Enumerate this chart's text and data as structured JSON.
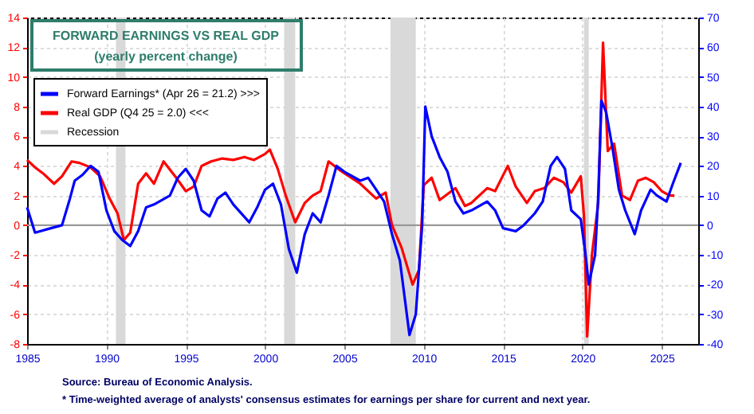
{
  "chart_data": {
    "type": "line",
    "title": "FORWARD EARNINGS VS REAL GDP",
    "subtitle": "(yearly percent change)",
    "xlim": [
      1985,
      2027.3
    ],
    "xticks": [
      1985,
      1990,
      1995,
      2000,
      2005,
      2010,
      2015,
      2020,
      2025
    ],
    "ylim": [
      -8,
      14
    ],
    "yticks": [
      -8,
      -6,
      -4,
      -2,
      0,
      2,
      4,
      6,
      8,
      10,
      12,
      14
    ],
    "y2lim": [
      -40,
      70
    ],
    "y2ticks": [
      -40,
      -30,
      -20,
      -10,
      0,
      10,
      20,
      30,
      40,
      50,
      60,
      70
    ],
    "grid": true,
    "legend": "top left",
    "line_style": "solid",
    "marker": "none",
    "series": [
      {
        "name": "Forward Earnings* (Apr 26 = 21.2) >>>",
        "color": "#0000ff",
        "axis": "y2",
        "x": [
          1985,
          1985.5,
          1986.5,
          1987.2,
          1987.7,
          1988,
          1988.5,
          1989,
          1989.5,
          1990,
          1990.5,
          1991,
          1991.5,
          1992,
          1992.5,
          1993,
          1994,
          1994.5,
          1995,
          1995.5,
          1996,
          1996.5,
          1997,
          1997.5,
          1998,
          1999,
          1999.5,
          2000,
          2000.5,
          2001,
          2001.5,
          2002,
          2002.5,
          2003,
          2003.5,
          2004,
          2004.5,
          2005,
          2006,
          2006.5,
          2007,
          2007.5,
          2008,
          2008.5,
          2009.1,
          2009.5,
          2009.9,
          2010.1,
          2010.5,
          2011,
          2011.5,
          2012,
          2012.5,
          2013,
          2014,
          2014.5,
          2015,
          2015.8,
          2016.3,
          2017,
          2017.5,
          2018,
          2018.4,
          2018.9,
          2019.3,
          2019.9,
          2020.2,
          2020.4,
          2020.8,
          2021.0,
          2021.2,
          2021.5,
          2021.9,
          2022.3,
          2022.7,
          2023.3,
          2023.7,
          2024.3,
          2024.7,
          2025.3,
          2025.7,
          2026.2
        ],
        "values": [
          6,
          -2.5,
          -1,
          0,
          9,
          15,
          17,
          20,
          18,
          5,
          -2,
          -5,
          -7,
          -2,
          6,
          7,
          10,
          16,
          19,
          15,
          5,
          3,
          9,
          11,
          7,
          1,
          6,
          12,
          14,
          7,
          -8,
          -16,
          -3,
          4,
          1,
          10,
          20,
          18,
          15,
          16,
          12,
          8,
          -3,
          -12,
          -37,
          -30,
          0,
          40,
          30,
          23,
          18,
          8,
          4,
          5,
          8,
          5,
          -1,
          -2,
          0,
          4,
          8,
          20,
          23,
          19,
          5,
          2,
          -10,
          -20,
          -10,
          10,
          42,
          38,
          26,
          12,
          5,
          -3,
          5,
          12,
          10,
          8,
          14,
          21
        ]
      },
      {
        "name": "Real GDP  (Q4 25 = 2.0) <<<",
        "color": "#ff0000",
        "x": [
          1985,
          1985.5,
          1986,
          1986.7,
          1987.2,
          1987.8,
          1988.3,
          1989,
          1989.6,
          1990.2,
          1990.7,
          1991.1,
          1991.5,
          1992,
          1992.5,
          1993,
          1993.6,
          1994.4,
          1995,
          1995.5,
          1996,
          1996.6,
          1997.3,
          1998,
          1998.7,
          1999.3,
          2000,
          2000.3,
          2000.8,
          2001.3,
          2001.9,
          2002.5,
          2003,
          2003.5,
          2004,
          2004.6,
          2005,
          2006,
          2007,
          2007.6,
          2008,
          2008.6,
          2009.3,
          2009.7,
          2010,
          2010.5,
          2011,
          2012,
          2012.6,
          2013,
          2014,
          2014.5,
          2015.3,
          2015.8,
          2016.5,
          2017,
          2017.6,
          2018.2,
          2018.8,
          2019.3,
          2019.9,
          2020.1,
          2020.3,
          2020.6,
          2021.0,
          2021.3,
          2021.6,
          2022,
          2022.5,
          2023,
          2023.5,
          2024,
          2024.5,
          2025,
          2025.5,
          2025.8
        ],
        "values": [
          4.4,
          3.9,
          3.5,
          2.8,
          3.3,
          4.3,
          4.2,
          3.9,
          3.3,
          1.8,
          0.8,
          -1,
          -0.5,
          2.8,
          3.5,
          2.8,
          4.3,
          3.2,
          2.3,
          2.6,
          4,
          4.3,
          4.5,
          4.4,
          4.6,
          4.4,
          4.8,
          5.1,
          3.8,
          2,
          0.2,
          1.5,
          2,
          2.3,
          4.3,
          3.8,
          3.5,
          2.8,
          1.8,
          2.2,
          0,
          -1.5,
          -4,
          -3,
          2.7,
          3.2,
          1.7,
          2.5,
          1.3,
          1.5,
          2.5,
          2.3,
          4,
          2.6,
          1.5,
          2.3,
          2.5,
          3.2,
          2.9,
          2.2,
          3.3,
          0.6,
          -7.5,
          -2,
          1.5,
          12.3,
          5,
          5.5,
          2,
          1.7,
          3,
          3.2,
          2.9,
          2.3,
          2.0,
          2.0
        ]
      }
    ],
    "bands": [
      {
        "axis": "x",
        "from": 1990.6,
        "to": 1991.2,
        "label": "Recession",
        "color": "#d9d9d9"
      },
      {
        "axis": "x",
        "from": 2001.2,
        "to": 2001.9,
        "color": "#d9d9d9"
      },
      {
        "axis": "x",
        "from": 2007.9,
        "to": 2009.5,
        "color": "#d9d9d9"
      },
      {
        "axis": "x",
        "from": 2020.1,
        "to": 2020.4,
        "color": "#d9d9d9"
      }
    ],
    "ref_lines": [
      {
        "axis": "y",
        "value": 0,
        "color": "#999999"
      }
    ],
    "annotations": [
      "Source: Bureau of Economic Analysis.",
      "* Time-weighted average of analysts' consensus estimates for earnings per share for current and next year."
    ]
  }
}
